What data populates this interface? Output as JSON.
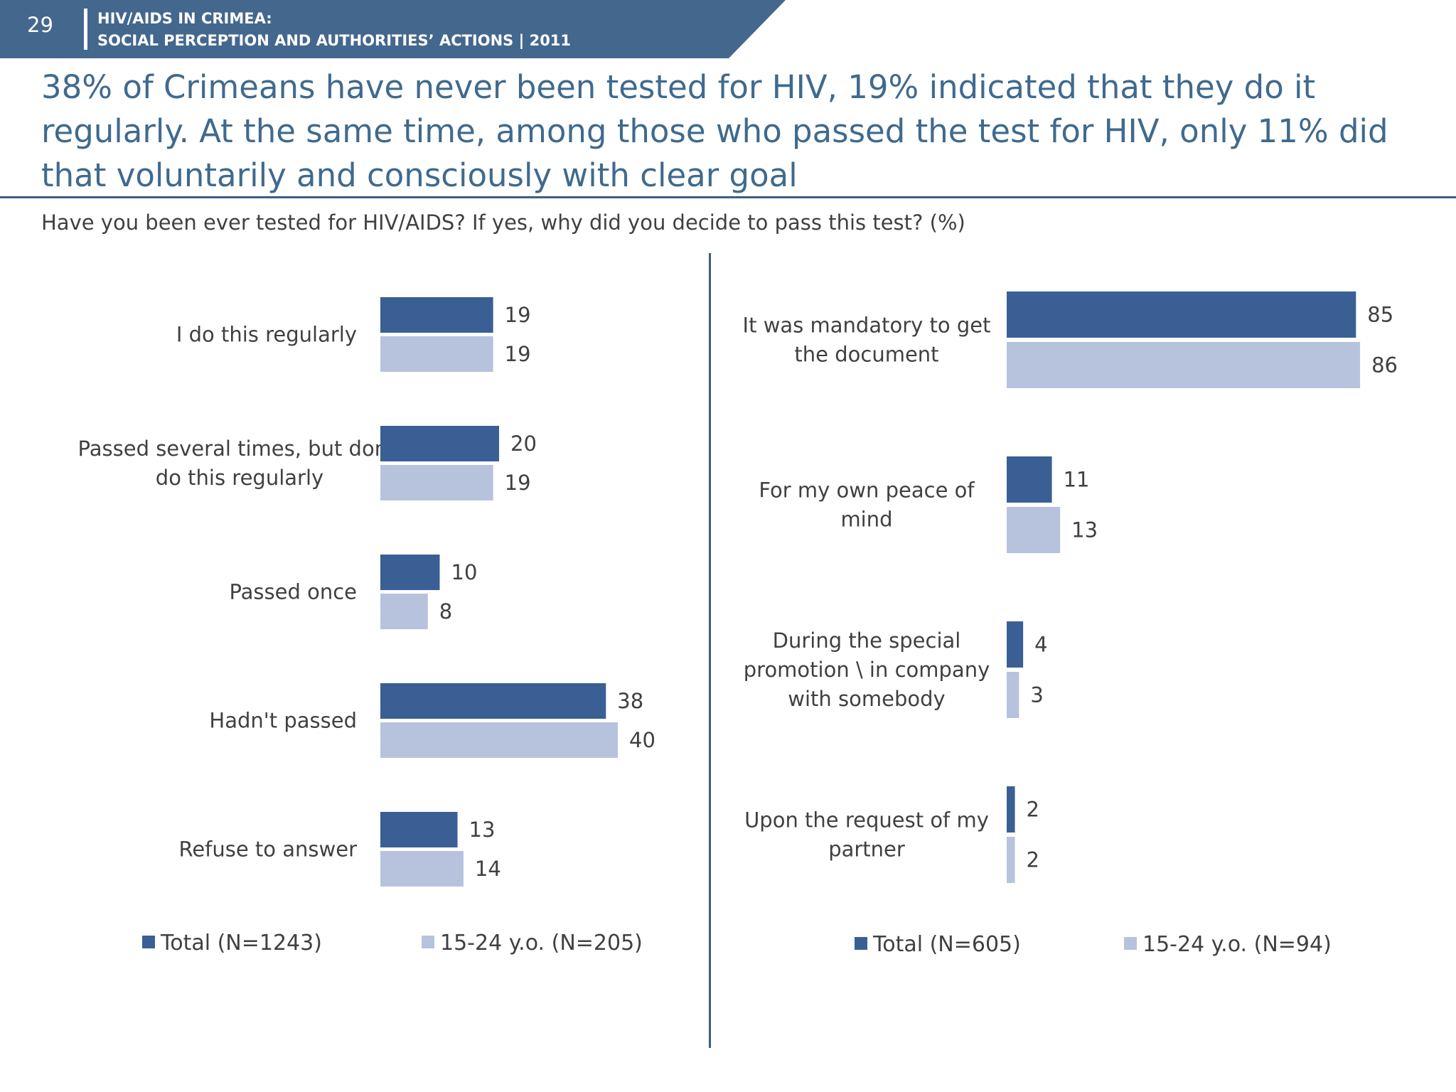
{
  "header": {
    "page_number": "29",
    "line1": "HIV/AIDS IN CRIMEA:",
    "line2": "SOCIAL PERCEPTION AND AUTHORITIES’ ACTIONS  |  2011",
    "band_color": "#44678e"
  },
  "headline": "38% of Crimeans have never been tested for HIV, 19% indicated that they do it regularly. At the same time, among those who passed the test for HIV, only 11% did that voluntarily and consciously with clear goal",
  "question": "Have you been ever tested for HIV/AIDS? If yes, why did you decide to pass this test? (%)",
  "colors": {
    "total": "#3a5f94",
    "youth": "#b7c3dd",
    "divider": "#3a5f82"
  },
  "chart_data": [
    {
      "type": "bar",
      "orientation": "horizontal",
      "categories": [
        "I do this regularly",
        "Passed several times, but don't do this regularly",
        "Passed once",
        "Hadn't passed",
        "Refuse to answer"
      ],
      "category_lines": [
        [
          "I do this regularly"
        ],
        [
          "Passed several times, but don't",
          "do this regularly"
        ],
        [
          "Passed once"
        ],
        [
          "Hadn't passed"
        ],
        [
          "Refuse to answer"
        ]
      ],
      "series": [
        {
          "name": "Total (N=1243)",
          "values": [
            19,
            20,
            10,
            38,
            13
          ]
        },
        {
          "name": "15-24 y.o. (N=205)",
          "values": [
            19,
            19,
            8,
            40,
            14
          ]
        }
      ],
      "legend_position": "bottom",
      "grid": false
    },
    {
      "type": "bar",
      "orientation": "horizontal",
      "categories": [
        "It was mandatory to get the document",
        "For my own peace of mind",
        "During the special promotion \\ in company with somebody",
        "Upon the request of my partner"
      ],
      "category_lines": [
        [
          "It was mandatory to get",
          "the document"
        ],
        [
          "For my own peace of",
          "mind"
        ],
        [
          "During the special",
          "promotion \\ in company",
          "with somebody"
        ],
        [
          "Upon the request of my",
          "partner"
        ]
      ],
      "series": [
        {
          "name": "Total (N=605)",
          "values": [
            85,
            11,
            4,
            2
          ]
        },
        {
          "name": "15-24 y.o. (N=94)",
          "values": [
            86,
            13,
            3,
            2
          ]
        }
      ],
      "legend_position": "bottom",
      "grid": false
    }
  ]
}
